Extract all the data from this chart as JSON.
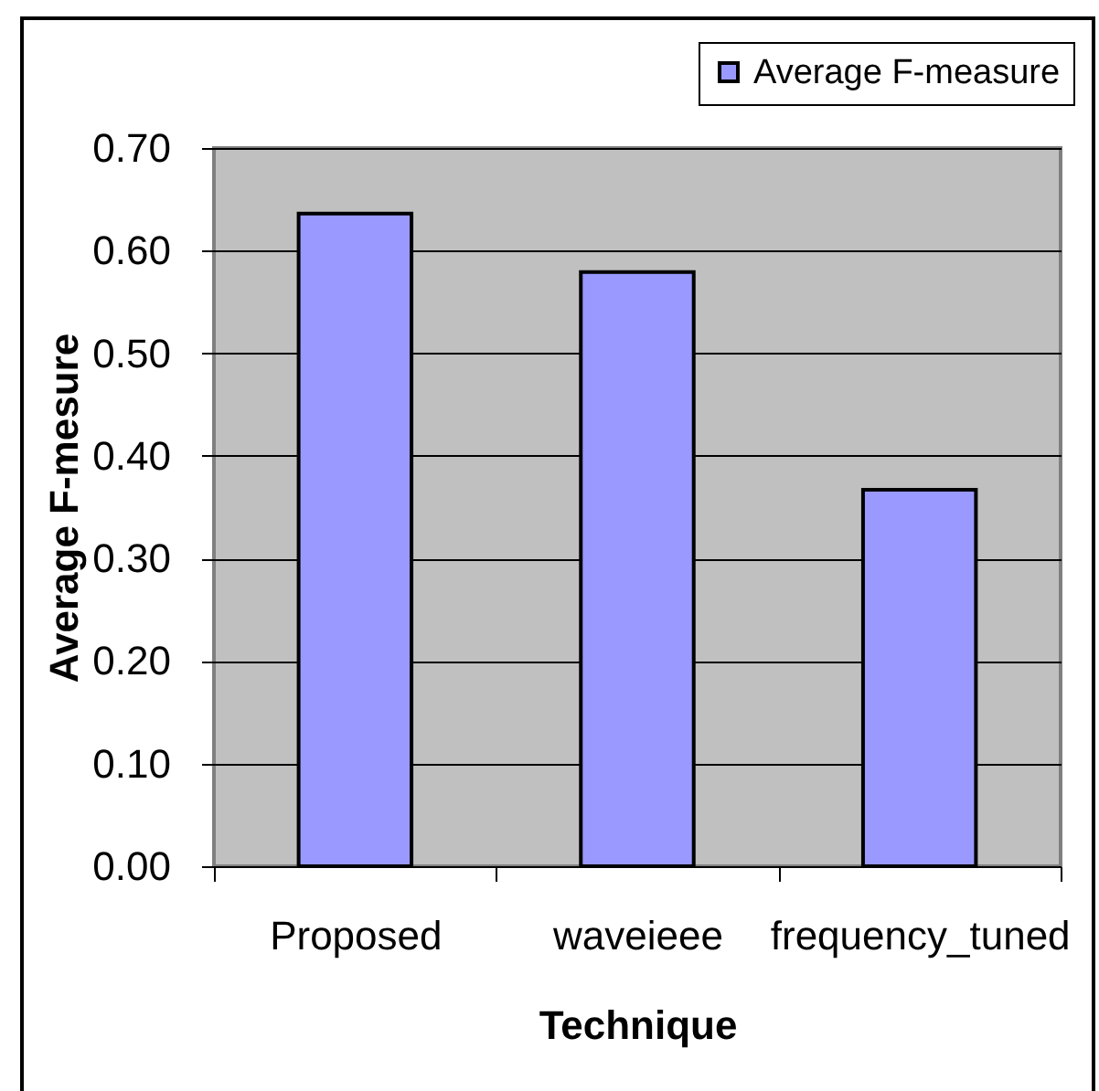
{
  "chart_data": {
    "type": "bar",
    "xlabel": "Technique",
    "ylabel": "Average F-mesure",
    "categories": [
      "Proposed",
      "waveieee",
      "frequency_tuned"
    ],
    "series": [
      {
        "name": "Average F-measure",
        "color": "#9999ff",
        "values": [
          0.636,
          0.579,
          0.367
        ]
      }
    ],
    "ylim": [
      0,
      0.7
    ],
    "yticks": [
      {
        "value": 0,
        "label": "0.00"
      },
      {
        "value": 0.1,
        "label": "0.10"
      },
      {
        "value": 0.2,
        "label": "0.20"
      },
      {
        "value": 0.3,
        "label": "0.30"
      },
      {
        "value": 0.4,
        "label": "0.40"
      },
      {
        "value": 0.5,
        "label": "0.50"
      },
      {
        "value": 0.6,
        "label": "0.60"
      },
      {
        "value": 0.7,
        "label": "0.70"
      }
    ],
    "grid": "y",
    "legend": "top right"
  }
}
